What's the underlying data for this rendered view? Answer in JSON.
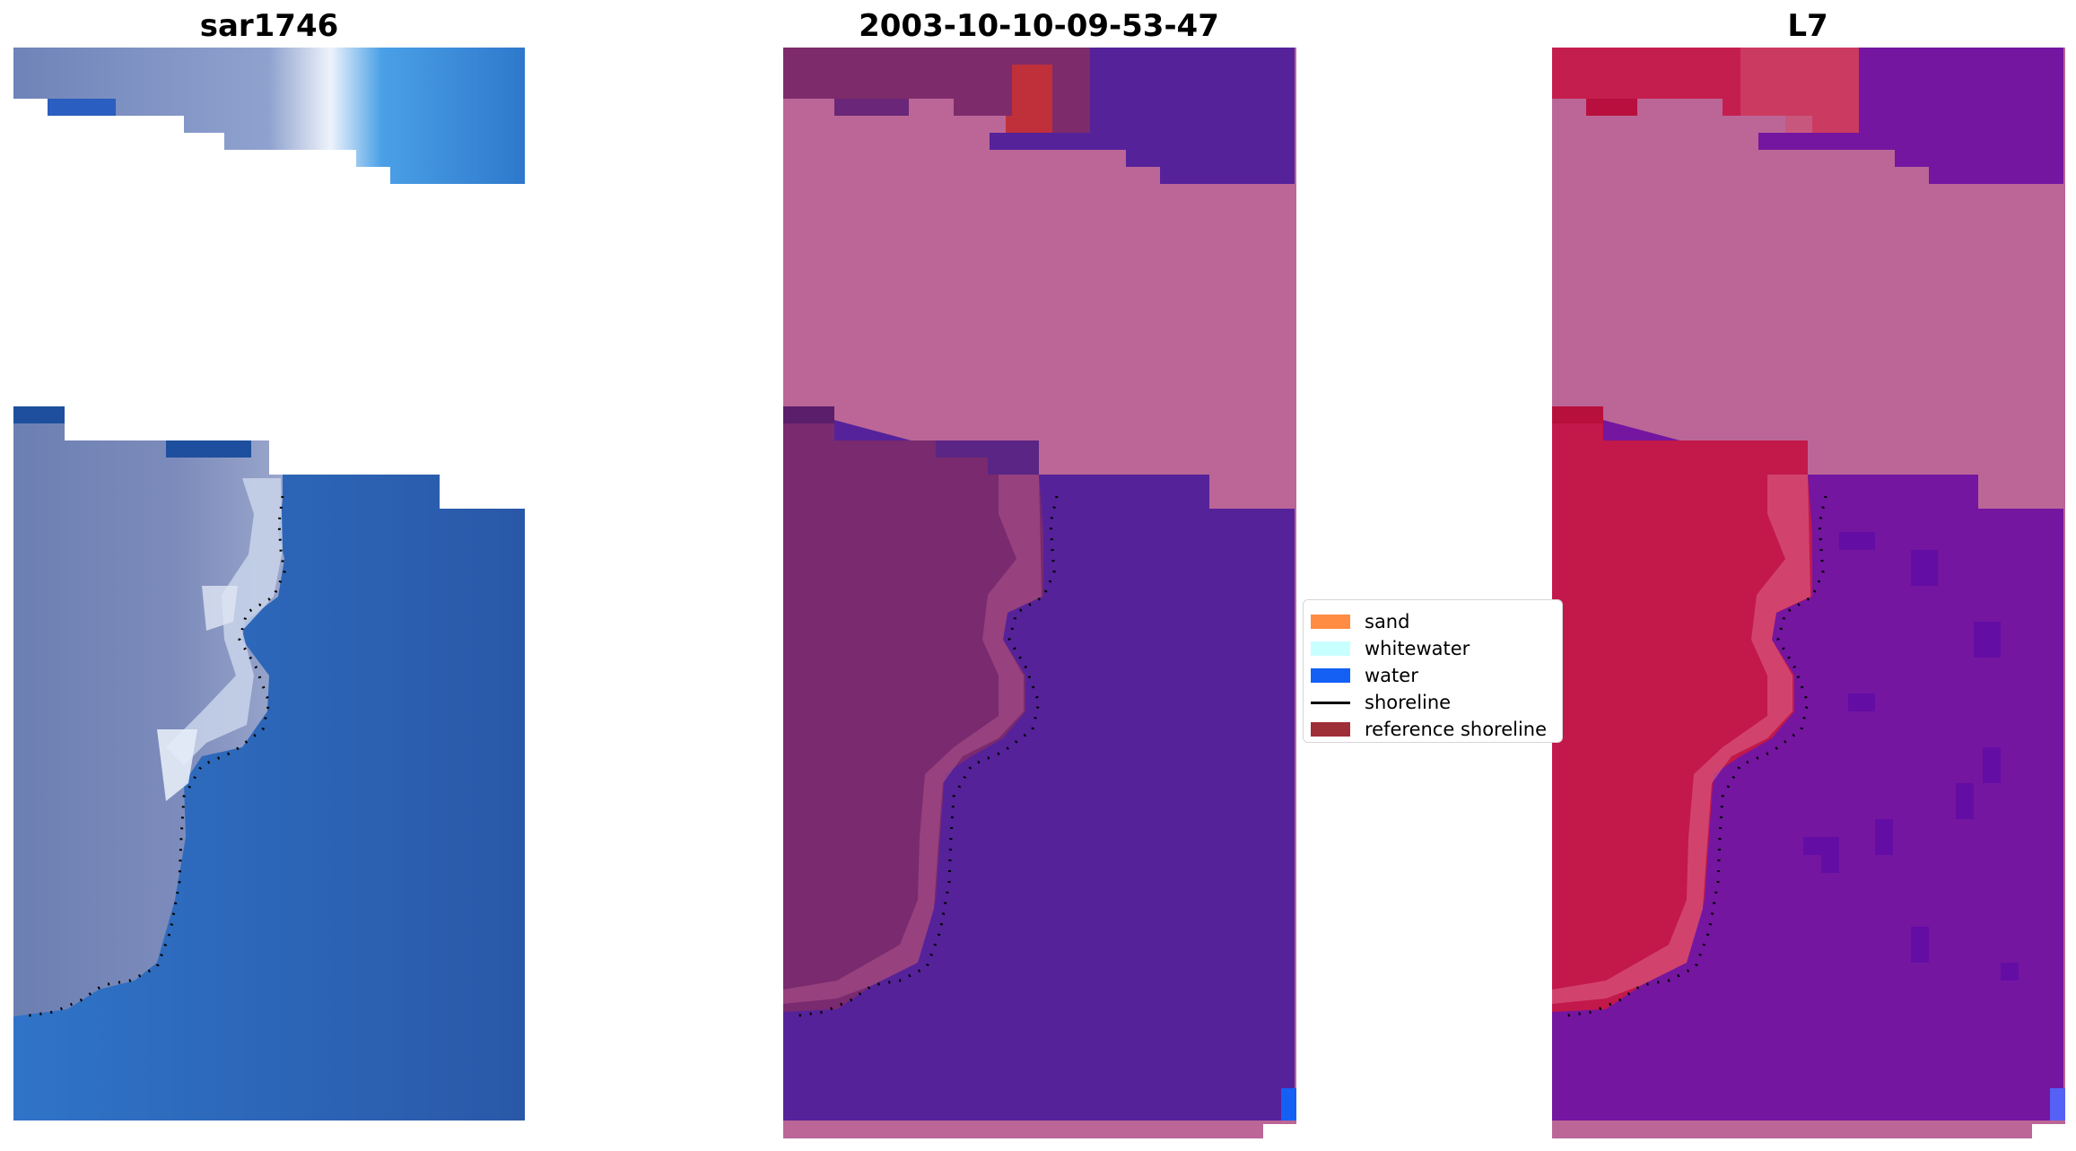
{
  "panels": {
    "rgb": {
      "title": "sar1746"
    },
    "classified": {
      "title": "2003-10-10-09-53-47"
    },
    "index": {
      "title": "L7"
    }
  },
  "legend": {
    "items": [
      {
        "label": "sand",
        "color": "#ff8c42",
        "kind": "patch"
      },
      {
        "label": "whitewater",
        "color": "#c8ffff",
        "kind": "patch"
      },
      {
        "label": "water",
        "color": "#1460f5",
        "kind": "patch"
      },
      {
        "label": "shoreline",
        "color": "#000000",
        "kind": "line"
      },
      {
        "label": "reference shoreline",
        "color": "#9e2f38",
        "kind": "patch"
      }
    ]
  },
  "colors": {
    "rgb_land": "#6a7fb0",
    "rgb_water": "#2a5fb0",
    "rgb_bright": "#e8eef8",
    "class_land": "#7a2a6e",
    "class_water": "#55229a",
    "class_nodata": "#bb6697",
    "class_ref": "#c0303a",
    "index_land": "#c2184a",
    "index_water": "#7416a0",
    "index_nodata": "#bb6697",
    "edge_water": "#1460f5"
  }
}
